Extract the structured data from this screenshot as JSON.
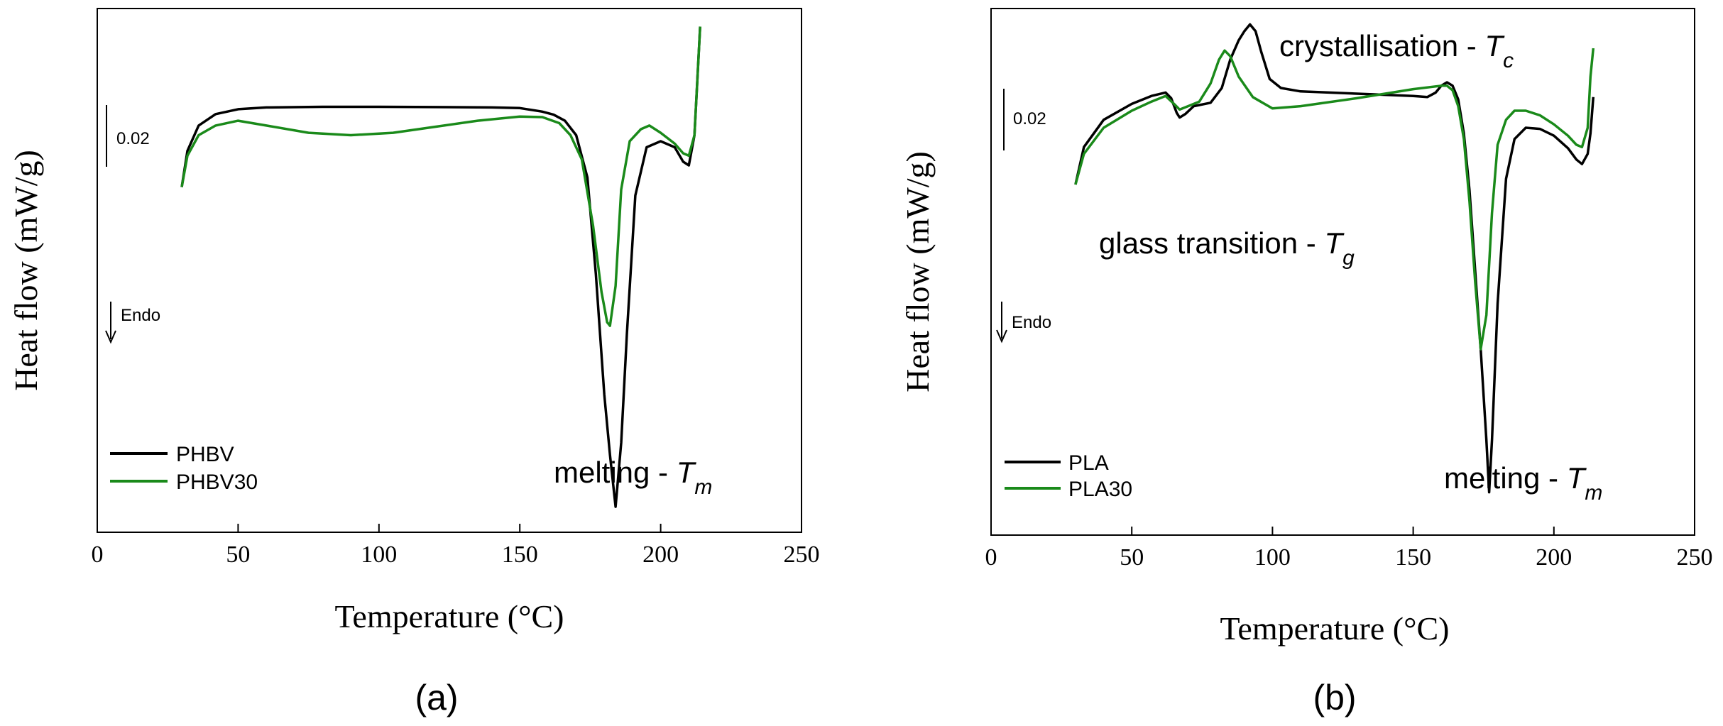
{
  "chart_data": [
    {
      "type": "line",
      "panel_label": "(a)",
      "xlabel": "Temperature (°C)",
      "ylabel": "Heat flow (mW/g)",
      "xlim": [
        0,
        250
      ],
      "xticks": [
        0,
        50,
        100,
        150,
        200,
        250
      ],
      "scale_bar_label": "0.02",
      "direction_label": "Endo",
      "legend_position": "bottom-left",
      "colors": {
        "PHBV": "#000000",
        "PHBV30": "#1a8a1a"
      },
      "series": [
        {
          "name": "PHBV",
          "x": [
            30,
            32,
            36,
            42,
            50,
            60,
            80,
            100,
            120,
            140,
            150,
            158,
            162,
            166,
            170,
            174,
            177,
            180,
            182,
            184,
            186,
            188,
            191,
            195,
            200,
            205,
            208,
            210,
            212,
            213,
            214
          ],
          "y": [
            1.48,
            1.18,
            0.97,
            0.875,
            0.835,
            0.82,
            0.815,
            0.815,
            0.817,
            0.82,
            0.825,
            0.855,
            0.88,
            0.93,
            1.05,
            1.4,
            2.2,
            3.2,
            3.7,
            4.13,
            3.6,
            2.7,
            1.55,
            1.15,
            1.1,
            1.15,
            1.27,
            1.3,
            1.05,
            0.6,
            0.15
          ]
        },
        {
          "name": "PHBV30",
          "x": [
            30,
            32,
            36,
            42,
            50,
            60,
            75,
            90,
            105,
            120,
            135,
            150,
            158,
            164,
            168,
            172,
            176,
            179,
            181,
            182,
            184,
            186,
            189,
            193,
            196,
            200,
            205,
            208,
            210,
            212,
            213,
            214
          ],
          "y": [
            1.48,
            1.22,
            1.05,
            0.97,
            0.93,
            0.97,
            1.03,
            1.05,
            1.03,
            0.98,
            0.93,
            0.895,
            0.9,
            0.95,
            1.05,
            1.25,
            1.8,
            2.35,
            2.6,
            2.63,
            2.3,
            1.5,
            1.1,
            1.0,
            0.97,
            1.03,
            1.12,
            1.2,
            1.22,
            1.05,
            0.6,
            0.15
          ]
        }
      ],
      "annotations": [
        {
          "text": "melting - ",
          "symbol": "T",
          "subscript": "m"
        }
      ]
    },
    {
      "type": "line",
      "panel_label": "(b)",
      "xlabel": "Temperature (°C)",
      "ylabel": "Heat flow (mW/g)",
      "xlim": [
        0,
        250
      ],
      "xticks": [
        0,
        50,
        100,
        150,
        200,
        250
      ],
      "scale_bar_label": "0.02",
      "direction_label": "Endo",
      "legend_position": "bottom-left",
      "colors": {
        "PLA": "#000000",
        "PLA30": "#1a8a1a"
      },
      "series": [
        {
          "name": "PLA",
          "x": [
            30,
            33,
            40,
            50,
            57,
            62,
            64,
            66,
            67,
            69,
            72,
            78,
            82,
            85,
            88,
            90,
            92,
            94,
            96,
            99,
            103,
            110,
            130,
            150,
            155,
            158,
            160,
            162,
            164,
            166,
            168,
            170,
            172,
            174,
            176,
            177,
            178,
            180,
            183,
            186,
            190,
            195,
            200,
            205,
            208,
            210,
            212,
            213,
            214
          ],
          "y": [
            1.55,
            1.22,
            0.98,
            0.84,
            0.77,
            0.74,
            0.79,
            0.92,
            0.96,
            0.93,
            0.86,
            0.83,
            0.7,
            0.45,
            0.28,
            0.2,
            0.14,
            0.2,
            0.38,
            0.62,
            0.7,
            0.73,
            0.75,
            0.77,
            0.78,
            0.74,
            0.68,
            0.65,
            0.68,
            0.8,
            1.1,
            1.6,
            2.3,
            3.0,
            3.8,
            4.26,
            3.8,
            2.6,
            1.5,
            1.15,
            1.05,
            1.06,
            1.12,
            1.23,
            1.33,
            1.37,
            1.28,
            1.1,
            0.78
          ]
        },
        {
          "name": "PLA30",
          "x": [
            30,
            33,
            40,
            50,
            57,
            62,
            65,
            67,
            70,
            74,
            78,
            81,
            83,
            85,
            88,
            93,
            100,
            110,
            130,
            150,
            160,
            162,
            164,
            166,
            168,
            170,
            172,
            174,
            176,
            178,
            180,
            183,
            186,
            190,
            195,
            200,
            205,
            208,
            210,
            212,
            213,
            214
          ],
          "y": [
            1.55,
            1.28,
            1.05,
            0.9,
            0.82,
            0.77,
            0.84,
            0.89,
            0.86,
            0.82,
            0.66,
            0.45,
            0.37,
            0.42,
            0.6,
            0.78,
            0.88,
            0.86,
            0.79,
            0.71,
            0.68,
            0.68,
            0.72,
            0.86,
            1.15,
            1.7,
            2.4,
            3.0,
            2.7,
            1.8,
            1.2,
            0.98,
            0.9,
            0.9,
            0.94,
            1.02,
            1.12,
            1.2,
            1.22,
            1.05,
            0.6,
            0.35
          ]
        }
      ],
      "annotations": [
        {
          "text": "crystallisation - ",
          "symbol": "T",
          "subscript": "c"
        },
        {
          "text": "glass transition - ",
          "symbol": "T",
          "subscript": "g"
        },
        {
          "text": "melting - ",
          "symbol": "T",
          "subscript": "m"
        }
      ]
    }
  ]
}
